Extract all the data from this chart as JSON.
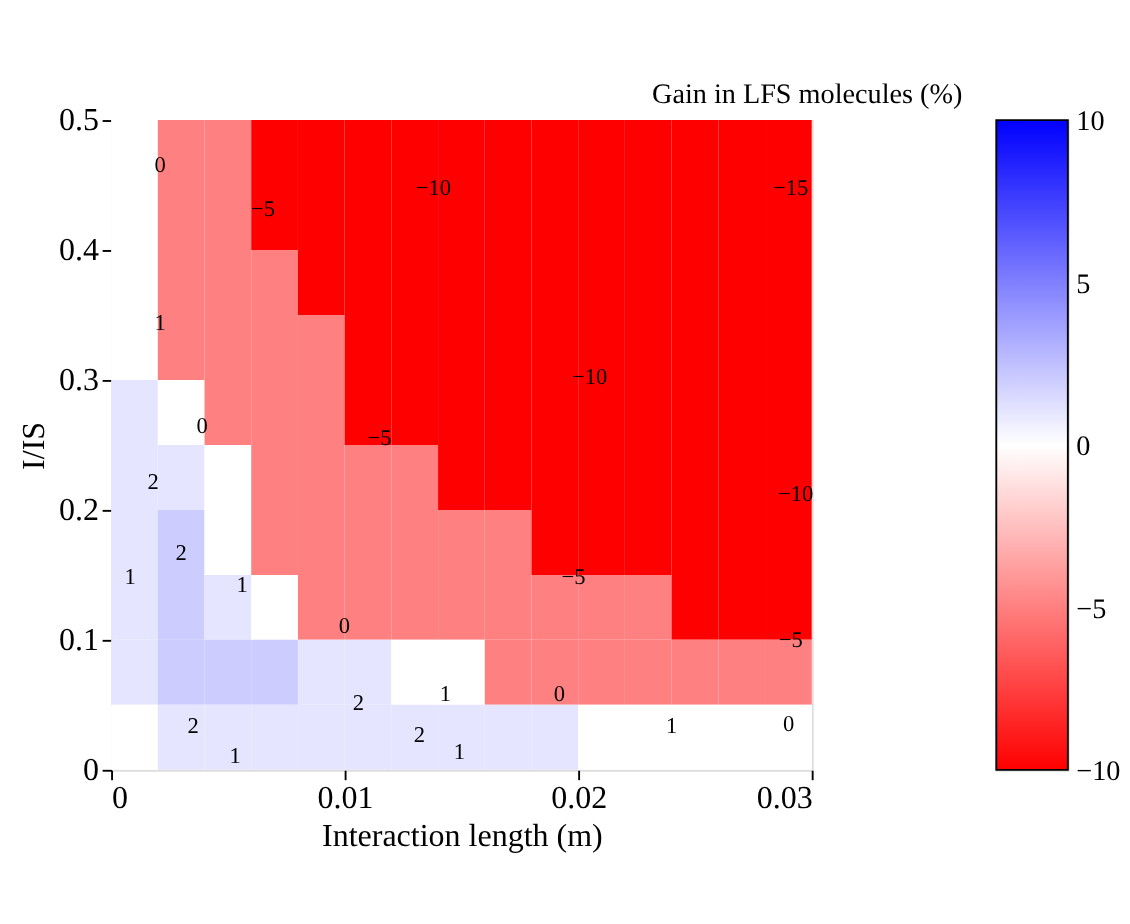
{
  "chart_data": {
    "type": "heatmap",
    "xlabel": "Interaction length (m)",
    "ylabel": "I/IS",
    "clabel": "Gain in LFS molecules  (%)",
    "x": [
      0.001,
      0.003,
      0.005,
      0.007,
      0.009,
      0.011,
      0.013,
      0.015,
      0.017,
      0.019,
      0.021,
      0.023,
      0.025,
      0.027,
      0.029
    ],
    "y": [
      0.475,
      0.425,
      0.375,
      0.325,
      0.275,
      0.225,
      0.175,
      0.125,
      0.075,
      0.025
    ],
    "cells": [
      [
        0,
        -5,
        -5,
        -10,
        -10,
        -10,
        -10,
        -10,
        -10,
        -10,
        -10,
        -10,
        -10,
        -10,
        -10
      ],
      [
        0,
        -5,
        -5,
        -10,
        -10,
        -10,
        -10,
        -10,
        -10,
        -10,
        -10,
        -10,
        -10,
        -10,
        -10
      ],
      [
        0,
        -5,
        -5,
        -5,
        -10,
        -10,
        -10,
        -10,
        -10,
        -10,
        -10,
        -10,
        -10,
        -10,
        -10
      ],
      [
        0,
        -5,
        -5,
        -5,
        -5,
        -10,
        -10,
        -10,
        -10,
        -10,
        -10,
        -10,
        -10,
        -10,
        -10
      ],
      [
        1,
        0,
        -5,
        -5,
        -5,
        -10,
        -10,
        -10,
        -10,
        -10,
        -10,
        -10,
        -10,
        -10,
        -10
      ],
      [
        1,
        1,
        0,
        -5,
        -5,
        -5,
        -5,
        -10,
        -10,
        -10,
        -10,
        -10,
        -10,
        -10,
        -10
      ],
      [
        1,
        2,
        0,
        -5,
        -5,
        -5,
        -5,
        -5,
        -5,
        -10,
        -10,
        -10,
        -10,
        -10,
        -10
      ],
      [
        1,
        2,
        1,
        0,
        -5,
        -5,
        -5,
        -5,
        -5,
        -5,
        -5,
        -5,
        -10,
        -10,
        -10
      ],
      [
        1,
        2,
        2,
        2,
        1,
        1,
        0,
        0,
        -5,
        -5,
        -5,
        -5,
        -5,
        -5,
        -5
      ],
      [
        0,
        1,
        1,
        1,
        1,
        1,
        1,
        1,
        1,
        1,
        0,
        0,
        0,
        0,
        0
      ]
    ],
    "xlim": [
      0,
      0.03
    ],
    "ylim": [
      0,
      0.5
    ],
    "xticks": [
      0,
      0.01,
      0.02,
      0.03
    ],
    "yticks": [
      0,
      0.1,
      0.2,
      0.3,
      0.4,
      0.5
    ],
    "clim": [
      -10,
      10
    ],
    "cticks": [
      {
        "value": -10,
        "label": "−10"
      },
      {
        "value": -5,
        "label": "−5"
      },
      0,
      5,
      10
    ],
    "colors": [
      "#ff0000",
      "#ffffff",
      "#0000ff"
    ],
    "grid": false,
    "annotations": [
      "0",
      "−5",
      "−10",
      "−15",
      "1",
      "0",
      "−5",
      "−10",
      "−10",
      "2",
      "2",
      "1",
      "0",
      "−5",
      "−5",
      "1",
      "2",
      "1",
      "0",
      "0",
      "1",
      "2",
      "2",
      "1",
      "1"
    ]
  }
}
